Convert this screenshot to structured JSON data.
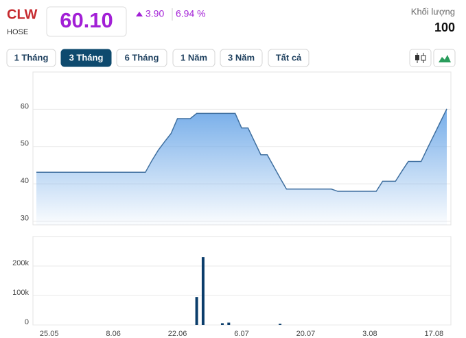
{
  "header": {
    "ticker": "CLW",
    "exchange": "HOSE",
    "price": "60.10",
    "change": "3.90",
    "change_pct": "6.94 %",
    "volume_label": "Khối lượng",
    "volume": "100"
  },
  "ranges": {
    "buttons": [
      "1 Tháng",
      "3 Tháng",
      "6 Tháng",
      "1 Năm",
      "3 Năm",
      "Tất cả"
    ],
    "active": 1
  },
  "chart_data": [
    {
      "type": "area",
      "color": "#3f6f9f",
      "fill": "#6fa9e8",
      "values": [
        43.1,
        43.1,
        43.1,
        43.1,
        43.1,
        43.1,
        43.1,
        43.1,
        43.1,
        43.1,
        43.1,
        43.1,
        43.1,
        43.1,
        43.1,
        43.1,
        43.1,
        43.1,
        46.2,
        49.0,
        51.3,
        53.5,
        57.5,
        57.5,
        57.5,
        58.9,
        58.9,
        58.9,
        58.9,
        58.9,
        58.9,
        58.9,
        55.0,
        55.0,
        51.4,
        47.8,
        47.8,
        44.7,
        41.6,
        38.6,
        38.6,
        38.6,
        38.6,
        38.6,
        38.6,
        38.6,
        38.6,
        38.0,
        38.0,
        38.0,
        38.0,
        38.0,
        38.0,
        38.0,
        40.7,
        40.7,
        40.7,
        43.4,
        46.0,
        46.0,
        46.0,
        49.6,
        53.1,
        56.6,
        60.1
      ],
      "ylim": [
        29,
        70
      ],
      "yticks": [
        30,
        40,
        50,
        60
      ],
      "grid": true
    },
    {
      "type": "bar",
      "color": "#0b3d6b",
      "categories": [
        null,
        null,
        "25.05",
        null,
        null,
        null,
        null,
        null,
        null,
        null,
        null,
        null,
        "8.06",
        null,
        null,
        null,
        null,
        null,
        null,
        null,
        null,
        null,
        "22.06",
        null,
        null,
        null,
        null,
        null,
        null,
        null,
        null,
        null,
        "6.07",
        null,
        null,
        null,
        null,
        null,
        null,
        null,
        null,
        null,
        "20.07",
        null,
        null,
        null,
        null,
        null,
        null,
        null,
        null,
        null,
        "3.08",
        null,
        null,
        null,
        null,
        null,
        null,
        null,
        null,
        null,
        "17.08",
        null,
        null
      ],
      "values": [
        0,
        0,
        0,
        0,
        0,
        0,
        0,
        0,
        0,
        0,
        0,
        0,
        0,
        0,
        0,
        0,
        0,
        0,
        0,
        0,
        0,
        0,
        0,
        0,
        0,
        95000,
        230000,
        0,
        0,
        6000,
        8000,
        0,
        0,
        0,
        0,
        0,
        0,
        0,
        4000,
        0,
        0,
        0,
        0,
        0,
        0,
        0,
        0,
        0,
        0,
        0,
        0,
        0,
        0,
        0,
        0,
        0,
        0,
        0,
        0,
        0,
        0,
        0,
        0,
        0,
        0
      ],
      "ylim": [
        0,
        300000
      ],
      "yticks": [
        0,
        {
          "value": 100000,
          "label": "100k"
        },
        {
          "value": 200000,
          "label": "200k"
        }
      ],
      "grid": true
    }
  ]
}
